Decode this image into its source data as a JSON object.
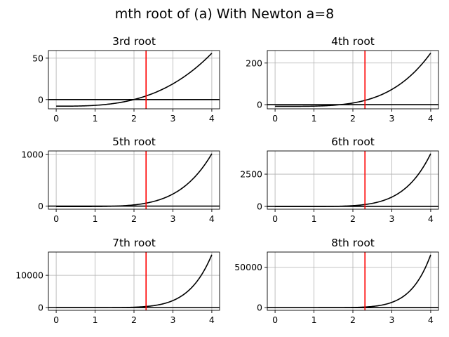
{
  "figure": {
    "suptitle": "mth root of (a) With Newton a=8"
  },
  "style": {
    "curve_color": "#000000",
    "marker_color": "#ff0000",
    "zero_line_color": "#000000",
    "grid_color": "#b0b0b0"
  },
  "chart_data": [
    {
      "type": "line",
      "title": "3rd root",
      "m": 3,
      "a": 8,
      "x_range": [
        0,
        4
      ],
      "xlim": [
        -0.2,
        4.2
      ],
      "ylim": [
        -11.2,
        59.2
      ],
      "xticks": [
        0,
        1,
        2,
        3,
        4
      ],
      "yticks": [
        0,
        50
      ],
      "vline_x": 2.31,
      "grid": true,
      "series": [
        {
          "expression": "x^3 - 8",
          "x": [
            0,
            0.5,
            1,
            1.5,
            2,
            2.5,
            3,
            3.5,
            4
          ],
          "y": [
            -8,
            -7.875,
            -7,
            -4.625,
            0,
            7.625,
            19,
            34.875,
            56
          ]
        }
      ]
    },
    {
      "type": "line",
      "title": "4th root",
      "m": 4,
      "a": 8,
      "x_range": [
        0,
        4
      ],
      "xlim": [
        -0.2,
        4.2
      ],
      "ylim": [
        -20,
        260
      ],
      "xticks": [
        0,
        1,
        2,
        3,
        4
      ],
      "yticks": [
        0,
        200
      ],
      "vline_x": 2.31,
      "grid": true,
      "series": [
        {
          "expression": "x^4 - 8",
          "x": [
            0,
            0.5,
            1,
            1.5,
            2,
            2.5,
            3,
            3.5,
            4
          ],
          "y": [
            -8,
            -7.94,
            -7,
            -2.94,
            8,
            31.06,
            73,
            142.06,
            248
          ]
        }
      ]
    },
    {
      "type": "line",
      "title": "5th root",
      "m": 5,
      "a": 8,
      "x_range": [
        0,
        4
      ],
      "xlim": [
        -0.2,
        4.2
      ],
      "ylim": [
        -60,
        1070
      ],
      "xticks": [
        0,
        1,
        2,
        3,
        4
      ],
      "yticks": [
        0,
        1000
      ],
      "vline_x": 2.31,
      "grid": true,
      "series": [
        {
          "expression": "x^5 - 8",
          "x": [
            0,
            0.5,
            1,
            1.5,
            2,
            2.5,
            3,
            3.5,
            4
          ],
          "y": [
            -8,
            -7.97,
            -7,
            -0.41,
            24,
            89.66,
            235,
            517.22,
            1016
          ]
        }
      ]
    },
    {
      "type": "line",
      "title": "6th root",
      "m": 6,
      "a": 8,
      "x_range": [
        0,
        4
      ],
      "xlim": [
        -0.2,
        4.2
      ],
      "ylim": [
        -220,
        4300
      ],
      "xticks": [
        0,
        1,
        2,
        3,
        4
      ],
      "yticks": [
        0,
        2500
      ],
      "vline_x": 2.31,
      "grid": true,
      "series": [
        {
          "expression": "x^6 - 8",
          "x": [
            0,
            0.5,
            1,
            1.5,
            2,
            2.5,
            3,
            3.5,
            4
          ],
          "y": [
            -8,
            -7.98,
            -7,
            3.39,
            56,
            236.14,
            721,
            1830.27,
            4088
          ]
        }
      ]
    },
    {
      "type": "line",
      "title": "7th root",
      "m": 7,
      "a": 8,
      "x_range": [
        0,
        4
      ],
      "xlim": [
        -0.2,
        4.2
      ],
      "ylim": [
        -840,
        17200
      ],
      "xticks": [
        0,
        1,
        2,
        3,
        4
      ],
      "yticks": [
        0,
        10000
      ],
      "vline_x": 2.31,
      "grid": true,
      "series": [
        {
          "expression": "x^7 - 8",
          "x": [
            0,
            0.5,
            1,
            1.5,
            2,
            2.5,
            3,
            3.5,
            4
          ],
          "y": [
            -8,
            -7.99,
            -7,
            9.09,
            120,
            602.35,
            2179,
            6425.94,
            16376
          ]
        }
      ]
    },
    {
      "type": "line",
      "title": "8th root",
      "m": 8,
      "a": 8,
      "x_range": [
        0,
        4
      ],
      "xlim": [
        -0.2,
        4.2
      ],
      "ylim": [
        -3280,
        68900
      ],
      "xticks": [
        0,
        1,
        2,
        3,
        4
      ],
      "yticks": [
        0,
        50000
      ],
      "vline_x": 2.31,
      "grid": true,
      "series": [
        {
          "expression": "x^8 - 8",
          "x": [
            0,
            0.5,
            1,
            1.5,
            2,
            2.5,
            3,
            3.5,
            4
          ],
          "y": [
            -8,
            -8,
            -7,
            17.63,
            248,
            1517.88,
            6553,
            22510.8,
            65528
          ]
        }
      ]
    }
  ]
}
